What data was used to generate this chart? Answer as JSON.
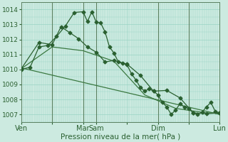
{
  "bg_color": "#cceae0",
  "grid_color": "#99d4c4",
  "line_color_main": "#2a6030",
  "line_color_smooth": "#3a7840",
  "ylim": [
    1006.5,
    1014.5
  ],
  "yticks": [
    1007,
    1008,
    1009,
    1010,
    1011,
    1012,
    1013,
    1014
  ],
  "xlabel": "Pression niveau de la mer( hPa )",
  "xlabel_fontsize": 7.5,
  "xtick_labels": [
    "Ven",
    "",
    "Mar",
    "Sam",
    "",
    "Dim",
    "",
    "Lun"
  ],
  "xtick_positions": [
    0,
    7,
    14,
    17,
    24,
    31,
    38,
    45
  ],
  "series1_x": [
    0,
    2,
    4,
    6,
    8,
    10,
    12,
    14,
    15,
    16,
    17,
    18,
    19,
    20,
    21,
    22,
    23,
    24,
    25,
    26,
    27,
    28,
    29,
    30,
    31,
    32,
    33,
    34,
    35,
    36,
    37,
    38,
    39,
    40,
    41,
    42,
    43,
    44,
    45
  ],
  "series1_y": [
    1010.0,
    1010.15,
    1011.5,
    1011.6,
    1012.2,
    1012.9,
    1013.8,
    1013.85,
    1013.2,
    1013.85,
    1013.15,
    1013.1,
    1012.5,
    1011.5,
    1011.1,
    1010.5,
    1010.4,
    1010.3,
    1009.7,
    1009.3,
    1008.8,
    1008.55,
    1008.7,
    1008.55,
    1008.3,
    1007.8,
    1007.5,
    1007.0,
    1007.3,
    1007.7,
    1007.5,
    1007.4,
    1007.1,
    1007.0,
    1007.15,
    1007.5,
    1007.8,
    1007.2,
    1007.1
  ],
  "series2_x": [
    0,
    4,
    7,
    9,
    11,
    13,
    15,
    17,
    19,
    21,
    24,
    27,
    30,
    33,
    36,
    39,
    42,
    45
  ],
  "series2_y": [
    1010.05,
    1011.8,
    1011.65,
    1012.85,
    1012.45,
    1012.05,
    1011.5,
    1011.15,
    1010.5,
    1010.6,
    1010.35,
    1009.6,
    1008.55,
    1008.6,
    1008.1,
    1007.1,
    1007.05,
    1007.1
  ],
  "series3_x": [
    0,
    7,
    14,
    21,
    28,
    35,
    42,
    45
  ],
  "series3_y": [
    1010.05,
    1011.5,
    1011.25,
    1010.55,
    1008.3,
    1007.4,
    1007.1,
    1007.1
  ],
  "series4_x": [
    0,
    45
  ],
  "series4_y": [
    1010.1,
    1007.0
  ],
  "vlines_x": [
    14,
    17,
    31,
    38
  ],
  "vlines_x2": [
    7
  ],
  "marker_size": 2.5,
  "linewidth": 0.9
}
